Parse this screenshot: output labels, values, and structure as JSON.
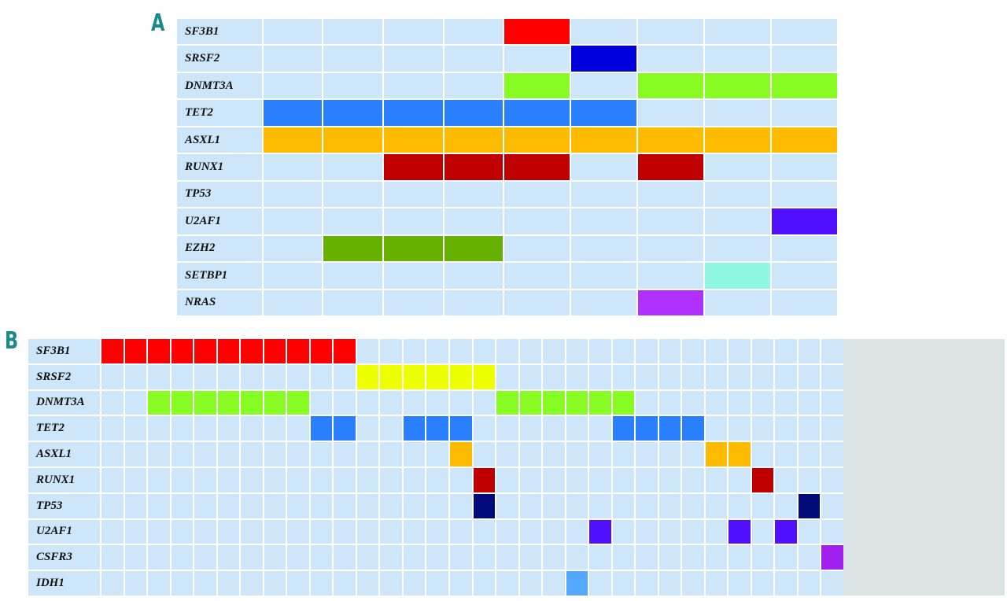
{
  "chart_data": [
    {
      "type": "heatmap",
      "panel": "A",
      "n_samples": 9,
      "rows": [
        {
          "gene": "SF3B1",
          "color": "#ff0000",
          "mutated": [
            5
          ]
        },
        {
          "gene": "SRSF2",
          "color": "#0000dd",
          "mutated": [
            6
          ]
        },
        {
          "gene": "DNMT3A",
          "color": "#88fc22",
          "mutated": [
            5,
            7,
            8,
            9
          ]
        },
        {
          "gene": "TET2",
          "color": "#2a7fff",
          "mutated": [
            1,
            2,
            3,
            4,
            5,
            6
          ]
        },
        {
          "gene": "ASXL1",
          "color": "#ffbb00",
          "mutated": [
            1,
            2,
            3,
            4,
            5,
            6,
            7,
            8,
            9
          ]
        },
        {
          "gene": "RUNX1",
          "color": "#c00000",
          "mutated": [
            3,
            4,
            5,
            7
          ]
        },
        {
          "gene": "TP53",
          "color": "#000a78",
          "mutated": []
        },
        {
          "gene": "U2AF1",
          "color": "#5010ff",
          "mutated": [
            9
          ]
        },
        {
          "gene": "EZH2",
          "color": "#66b000",
          "mutated": [
            2,
            3,
            4
          ]
        },
        {
          "gene": "SETBP1",
          "color": "#90f8e0",
          "mutated": [
            8
          ]
        },
        {
          "gene": "NRAS",
          "color": "#b030ff",
          "mutated": [
            7
          ]
        }
      ]
    },
    {
      "type": "heatmap",
      "panel": "B",
      "n_samples": 32,
      "rows": [
        {
          "gene": "SF3B1",
          "color": "#ff0000",
          "mutated": [
            1,
            2,
            3,
            4,
            5,
            6,
            7,
            8,
            9,
            10,
            11
          ]
        },
        {
          "gene": "SRSF2",
          "color": "#eeff00",
          "mutated": [
            12,
            13,
            14,
            15,
            16,
            17
          ]
        },
        {
          "gene": "DNMT3A",
          "color": "#88fc22",
          "mutated": [
            3,
            4,
            5,
            6,
            7,
            8,
            9,
            18,
            19,
            20,
            21,
            22,
            23
          ]
        },
        {
          "gene": "TET2",
          "color": "#2a7fff",
          "mutated": [
            10,
            11,
            14,
            15,
            16,
            23,
            24,
            25,
            26
          ]
        },
        {
          "gene": "ASXL1",
          "color": "#ffbb00",
          "mutated": [
            16,
            27,
            28
          ]
        },
        {
          "gene": "RUNX1",
          "color": "#c00000",
          "mutated": [
            17,
            29
          ]
        },
        {
          "gene": "TP53",
          "color": "#000a78",
          "mutated": [
            17,
            31
          ]
        },
        {
          "gene": "U2AF1",
          "color": "#5010ff",
          "mutated": [
            22,
            28,
            30
          ]
        },
        {
          "gene": "CSFR3",
          "color": "#a020f0",
          "mutated": [
            32
          ]
        },
        {
          "gene": "IDH1",
          "color": "#55a8ff",
          "mutated": [
            21
          ]
        }
      ]
    }
  ],
  "panel_labels": {
    "a": "A",
    "b": "B"
  }
}
